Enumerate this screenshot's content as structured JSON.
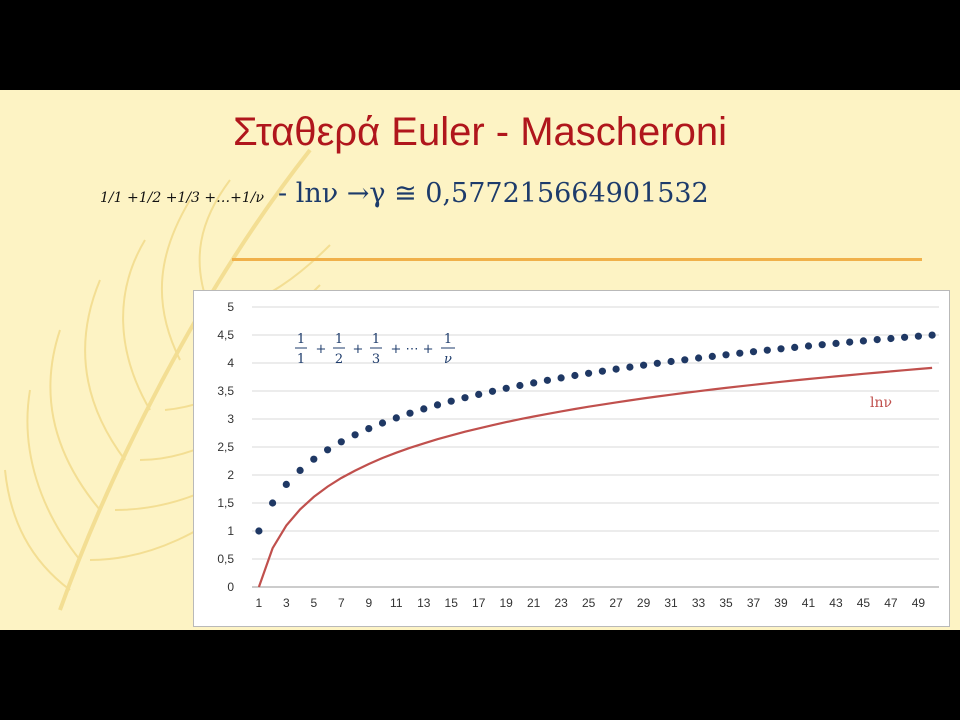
{
  "slide": {
    "title": "Σταθερά Euler - Mascheroni",
    "formula_left": "1/1 +1/2 +1/3 +…+1/ν",
    "formula_right": "- lnν →γ ≅ 0,5772156649015​32"
  },
  "colors": {
    "background": "#fdf3c4",
    "title": "#b0161c",
    "formula": "#1d3b6b",
    "rule": "#f0b04a",
    "harmonic_series": "#1f3864",
    "ln_series": "#c0504d"
  },
  "chart_data": {
    "type": "line",
    "title": "",
    "xlabel": "",
    "ylabel": "",
    "ylim": [
      0,
      5
    ],
    "yticks": [
      "0",
      "0,5",
      "1",
      "1,5",
      "2",
      "2,5",
      "3",
      "3,5",
      "4",
      "4,5",
      "5"
    ],
    "xticks": [
      "1",
      "3",
      "5",
      "7",
      "9",
      "11",
      "13",
      "15",
      "17",
      "19",
      "21",
      "23",
      "25",
      "27",
      "29",
      "31",
      "33",
      "35",
      "37",
      "39",
      "41",
      "43",
      "45",
      "47",
      "49"
    ],
    "grid": "horizontal",
    "x": [
      1,
      2,
      3,
      4,
      5,
      6,
      7,
      8,
      9,
      10,
      11,
      12,
      13,
      14,
      15,
      16,
      17,
      18,
      19,
      20,
      21,
      22,
      23,
      24,
      25,
      26,
      27,
      28,
      29,
      30,
      31,
      32,
      33,
      34,
      35,
      36,
      37,
      38,
      39,
      40,
      41,
      42,
      43,
      44,
      45,
      46,
      47,
      48,
      49,
      50
    ],
    "series": [
      {
        "label_parts": [
          "1",
          "1",
          "1",
          "2",
          "1",
          "3",
          "+",
          "+",
          "+ ⋯ +",
          "1",
          "ν"
        ],
        "style": "dots",
        "values": [
          1.0,
          1.5,
          1.833,
          2.083,
          2.283,
          2.45,
          2.593,
          2.718,
          2.829,
          2.929,
          3.02,
          3.103,
          3.18,
          3.252,
          3.318,
          3.381,
          3.44,
          3.495,
          3.548,
          3.598,
          3.645,
          3.691,
          3.734,
          3.776,
          3.816,
          3.854,
          3.891,
          3.927,
          3.961,
          3.995,
          4.027,
          4.058,
          4.089,
          4.118,
          4.147,
          4.175,
          4.202,
          4.228,
          4.254,
          4.279,
          4.303,
          4.327,
          4.35,
          4.373,
          4.395,
          4.417,
          4.438,
          4.459,
          4.479,
          4.499
        ]
      },
      {
        "name": "lnν",
        "style": "line",
        "values": [
          0,
          0.693,
          1.099,
          1.386,
          1.609,
          1.792,
          1.946,
          2.079,
          2.197,
          2.303,
          2.398,
          2.485,
          2.565,
          2.639,
          2.708,
          2.773,
          2.833,
          2.89,
          2.944,
          2.996,
          3.045,
          3.091,
          3.135,
          3.178,
          3.219,
          3.258,
          3.296,
          3.332,
          3.367,
          3.401,
          3.434,
          3.466,
          3.497,
          3.526,
          3.555,
          3.584,
          3.611,
          3.638,
          3.664,
          3.689,
          3.714,
          3.738,
          3.761,
          3.784,
          3.807,
          3.829,
          3.85,
          3.871,
          3.892,
          3.912
        ]
      }
    ]
  }
}
